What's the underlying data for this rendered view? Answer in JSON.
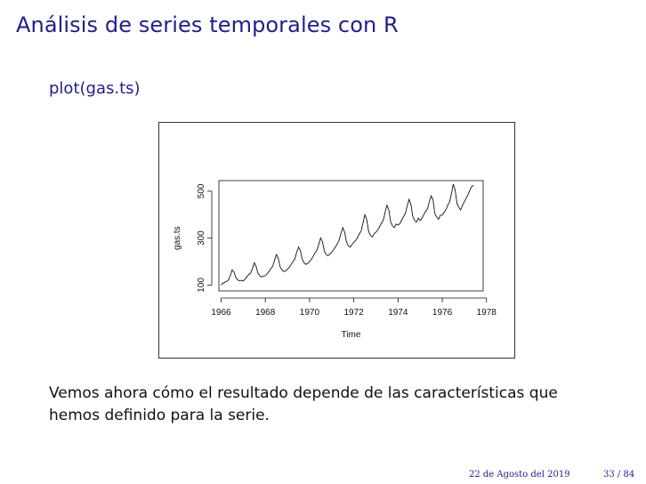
{
  "slide": {
    "title": "Análisis de series temporales con R",
    "code": "plot(gas.ts)",
    "body": "Vemos ahora cómo el resultado depende de las características que hemos definido para la serie.",
    "footer_date": "22 de Agosto del 2019",
    "footer_page": "33 / 84"
  },
  "chart_data": {
    "type": "line",
    "xlabel": "Time",
    "ylabel": "gas.ts",
    "xlim": [
      1965.9,
      1977.85
    ],
    "ylim": [
      75,
      545
    ],
    "x_ticks": [
      1966,
      1968,
      1970,
      1972,
      1974,
      1976,
      1978
    ],
    "y_ticks": [
      100,
      300,
      500
    ],
    "x_tick_labels": [
      "1966",
      "1968",
      "1970",
      "1972",
      "1974",
      "1976",
      "1978"
    ],
    "y_tick_labels": [
      "100",
      "300",
      "500"
    ],
    "start": 1966.0,
    "frequency": 12,
    "series": [
      {
        "values": [
          100,
          108,
          112,
          115,
          122,
          140,
          165,
          155,
          132,
          122,
          118,
          120,
          118,
          125,
          135,
          145,
          150,
          170,
          195,
          180,
          150,
          140,
          135,
          138,
          140,
          148,
          158,
          170,
          180,
          205,
          230,
          215,
          178,
          165,
          158,
          160,
          168,
          175,
          188,
          200,
          210,
          240,
          262,
          248,
          210,
          195,
          188,
          192,
          200,
          210,
          222,
          238,
          248,
          275,
          300,
          285,
          245,
          230,
          225,
          232,
          240,
          250,
          262,
          275,
          290,
          320,
          345,
          325,
          285,
          268,
          262,
          272,
          282,
          290,
          302,
          318,
          330,
          365,
          400,
          380,
          330,
          312,
          305,
          318,
          325,
          335,
          348,
          365,
          375,
          410,
          440,
          420,
          370,
          352,
          345,
          360,
          355,
          362,
          378,
          392,
          405,
          438,
          465,
          445,
          392,
          375,
          368,
          385,
          375,
          385,
          400,
          415,
          425,
          455,
          480,
          462,
          405,
          390,
          380,
          398,
          398,
          410,
          422,
          440,
          455,
          490,
          530,
          505,
          448,
          430,
          420,
          440,
          455,
          470,
          485,
          505,
          520,
          525
        ]
      }
    ]
  }
}
